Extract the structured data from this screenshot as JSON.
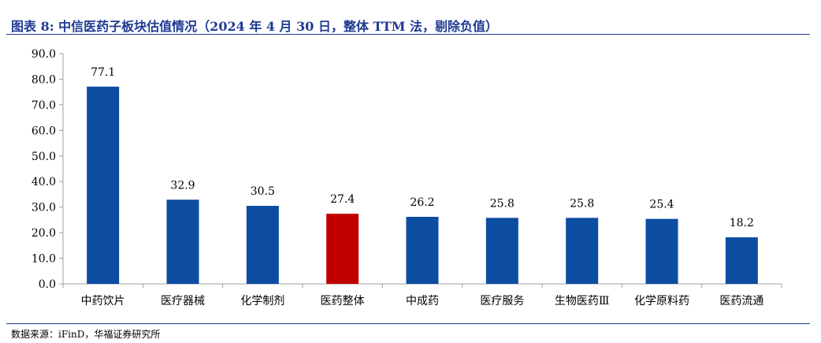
{
  "title": "图表 8:  中信医药子板块估值情况（2024 年 4 月 30 日，整体 TTM 法，剔除负值）",
  "source": "数据来源：iFinD，华福证券研究所",
  "colors": {
    "bar": "#0c4da2",
    "highlight": "#c00000",
    "title": "#1f3a93",
    "axis": "#a0a0a0"
  },
  "chart_data": {
    "type": "bar",
    "categories": [
      "中药饮片",
      "医疗器械",
      "化学制剂",
      "医药整体",
      "中成药",
      "医疗服务",
      "生物医药Ⅲ",
      "化学原料药",
      "医药流通"
    ],
    "values": [
      77.1,
      32.9,
      30.5,
      27.4,
      26.2,
      25.8,
      25.8,
      25.4,
      18.2
    ],
    "value_labels": [
      "77.1",
      "32.9",
      "30.5",
      "27.4",
      "26.2",
      "25.8",
      "25.8",
      "25.4",
      "18.2"
    ],
    "highlight_category": "医药整体",
    "ylim": [
      0,
      90
    ],
    "yticks": [
      "0.0",
      "10.0",
      "20.0",
      "30.0",
      "40.0",
      "50.0",
      "60.0",
      "70.0",
      "80.0",
      "90.0"
    ],
    "grid": false,
    "legend": "none",
    "xlabel": "",
    "ylabel": ""
  }
}
